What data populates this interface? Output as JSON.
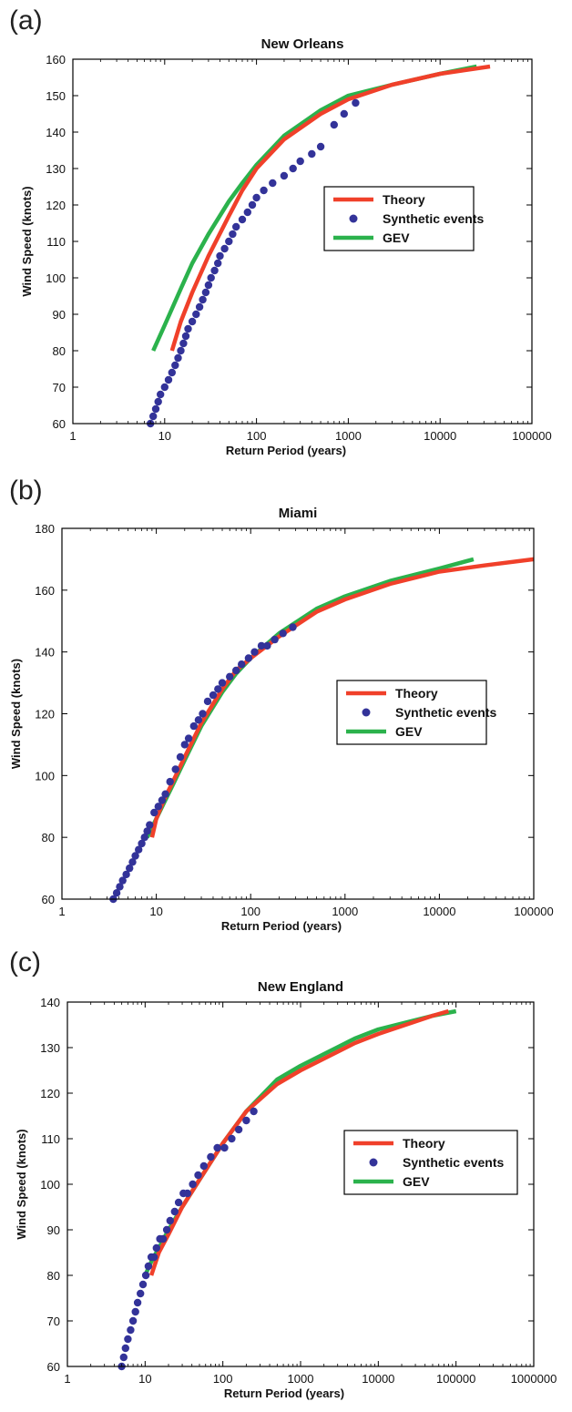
{
  "chart_data": [
    {
      "panel_label": "(a)",
      "type": "line",
      "title": "New Orleans",
      "xlabel": "Return Period (years)",
      "ylabel": "Wind Speed (knots)",
      "xscale": "log",
      "xlim": [
        1,
        100000
      ],
      "ylim": [
        60,
        160
      ],
      "xticks": [
        1,
        10,
        100,
        1000,
        10000,
        100000
      ],
      "xtick_labels": [
        "1",
        "10",
        "100",
        "1000",
        "10000",
        "100000"
      ],
      "yticks": [
        60,
        70,
        80,
        90,
        100,
        110,
        120,
        130,
        140,
        150,
        160
      ],
      "legend_position": "right",
      "grid": false,
      "series": [
        {
          "name": "Theory",
          "style": "line",
          "color": "#f0402a",
          "x": [
            12,
            15,
            20,
            30,
            50,
            70,
            100,
            200,
            500,
            1000,
            3000,
            10000,
            35000
          ],
          "y": [
            80,
            88,
            96,
            106,
            117,
            124,
            130,
            138,
            145,
            149,
            153,
            156,
            158
          ]
        },
        {
          "name": "Synthetic events",
          "style": "markers",
          "color": "#333399",
          "x": [
            7,
            7.5,
            8,
            8.5,
            9,
            10,
            11,
            12,
            13,
            14,
            15,
            16,
            17,
            18,
            20,
            22,
            24,
            26,
            28,
            30,
            32,
            35,
            38,
            40,
            45,
            50,
            55,
            60,
            70,
            80,
            90,
            100,
            120,
            150,
            200,
            250,
            300,
            400,
            500,
            700,
            900,
            1200
          ],
          "y": [
            60,
            62,
            64,
            66,
            68,
            70,
            72,
            74,
            76,
            78,
            80,
            82,
            84,
            86,
            88,
            90,
            92,
            94,
            96,
            98,
            100,
            102,
            104,
            106,
            108,
            110,
            112,
            114,
            116,
            118,
            120,
            122,
            124,
            126,
            128,
            130,
            132,
            134,
            136,
            142,
            145,
            148
          ]
        },
        {
          "name": "GEV",
          "style": "line",
          "color": "#2bb24c",
          "x": [
            7.5,
            10,
            15,
            20,
            30,
            50,
            70,
            100,
            200,
            500,
            1000,
            3000,
            10000,
            25000
          ],
          "y": [
            80,
            87,
            97,
            104,
            112,
            121,
            126,
            131,
            139,
            146,
            150,
            153,
            156,
            158
          ]
        }
      ]
    },
    {
      "panel_label": "(b)",
      "type": "line",
      "title": "Miami",
      "xlabel": "Return Period (years)",
      "ylabel": "Wind Speed (knots)",
      "xscale": "log",
      "xlim": [
        1,
        100000
      ],
      "ylim": [
        60,
        180
      ],
      "xticks": [
        1,
        10,
        100,
        1000,
        10000,
        100000
      ],
      "xtick_labels": [
        "1",
        "10",
        "100",
        "1000",
        "10000",
        "100000"
      ],
      "yticks": [
        60,
        80,
        100,
        120,
        140,
        160,
        180
      ],
      "legend_position": "right",
      "grid": false,
      "series": [
        {
          "name": "Theory",
          "style": "line",
          "color": "#f0402a",
          "x": [
            9,
            10,
            12,
            15,
            20,
            30,
            50,
            70,
            100,
            200,
            500,
            1000,
            3000,
            10000,
            30000,
            100000
          ],
          "y": [
            80,
            86,
            92,
            98,
            106,
            117,
            128,
            134,
            138,
            145,
            153,
            157,
            162,
            166,
            168,
            170
          ]
        },
        {
          "name": "Synthetic events",
          "style": "markers",
          "color": "#333399",
          "x": [
            3.5,
            3.8,
            4.1,
            4.4,
            4.8,
            5.2,
            5.6,
            6,
            6.5,
            7,
            7.5,
            8,
            8.5,
            9.5,
            10.5,
            11.5,
            12.5,
            14,
            16,
            18,
            20,
            22,
            25,
            28,
            31,
            35,
            40,
            45,
            50,
            60,
            70,
            80,
            95,
            110,
            130,
            150,
            180,
            220,
            280
          ],
          "y": [
            60,
            62,
            64,
            66,
            68,
            70,
            72,
            74,
            76,
            78,
            80,
            82,
            84,
            88,
            90,
            92,
            94,
            98,
            102,
            106,
            110,
            112,
            116,
            118,
            120,
            124,
            126,
            128,
            130,
            132,
            134,
            136,
            138,
            140,
            142,
            142,
            144,
            146,
            148
          ]
        },
        {
          "name": "GEV",
          "style": "line",
          "color": "#2bb24c",
          "x": [
            8,
            10,
            12,
            15,
            20,
            30,
            50,
            70,
            100,
            200,
            500,
            1000,
            3000,
            10000,
            23000
          ],
          "y": [
            80,
            86,
            91,
            97,
            105,
            116,
            127,
            133,
            138,
            146,
            154,
            158,
            163,
            167,
            170
          ]
        }
      ]
    },
    {
      "panel_label": "(c)",
      "type": "line",
      "title": "New England",
      "xlabel": "Return Period (years)",
      "ylabel": "Wind Speed (knots)",
      "xscale": "log",
      "xlim": [
        1,
        1000000
      ],
      "ylim": [
        60,
        140
      ],
      "xticks": [
        1,
        10,
        100,
        1000,
        10000,
        100000,
        1000000
      ],
      "xtick_labels": [
        "1",
        "10",
        "100",
        "1000",
        "10000",
        "100000",
        "1000000"
      ],
      "yticks": [
        60,
        70,
        80,
        90,
        100,
        110,
        120,
        130,
        140
      ],
      "legend_position": "right",
      "grid": false,
      "series": [
        {
          "name": "Theory",
          "style": "line",
          "color": "#f0402a",
          "x": [
            12,
            15,
            20,
            30,
            50,
            100,
            200,
            500,
            1000,
            5000,
            10000,
            50000,
            80000
          ],
          "y": [
            80,
            85,
            89,
            95,
            101,
            109,
            116,
            122,
            125,
            131,
            133,
            137,
            138
          ]
        },
        {
          "name": "Synthetic events",
          "style": "markers",
          "color": "#333399",
          "x": [
            5,
            5.3,
            5.6,
            6,
            6.5,
            7,
            7.5,
            8,
            8.7,
            9.4,
            10.2,
            11,
            12,
            13,
            14,
            15.5,
            17,
            19,
            21,
            24,
            27,
            31,
            35,
            41,
            48,
            57,
            70,
            85,
            105,
            130,
            160,
            200,
            250
          ],
          "y": [
            60,
            62,
            64,
            66,
            68,
            70,
            72,
            74,
            76,
            78,
            80,
            82,
            84,
            84,
            86,
            88,
            88,
            90,
            92,
            94,
            96,
            98,
            98,
            100,
            102,
            104,
            106,
            108,
            108,
            110,
            112,
            114,
            116
          ]
        },
        {
          "name": "GEV",
          "style": "line",
          "color": "#2bb24c",
          "x": [
            10,
            12,
            15,
            20,
            30,
            50,
            100,
            200,
            500,
            1000,
            5000,
            10000,
            50000,
            100000
          ],
          "y": [
            80,
            83,
            86,
            90,
            95,
            101,
            109,
            116,
            123,
            126,
            132,
            134,
            137,
            138
          ]
        }
      ]
    }
  ]
}
